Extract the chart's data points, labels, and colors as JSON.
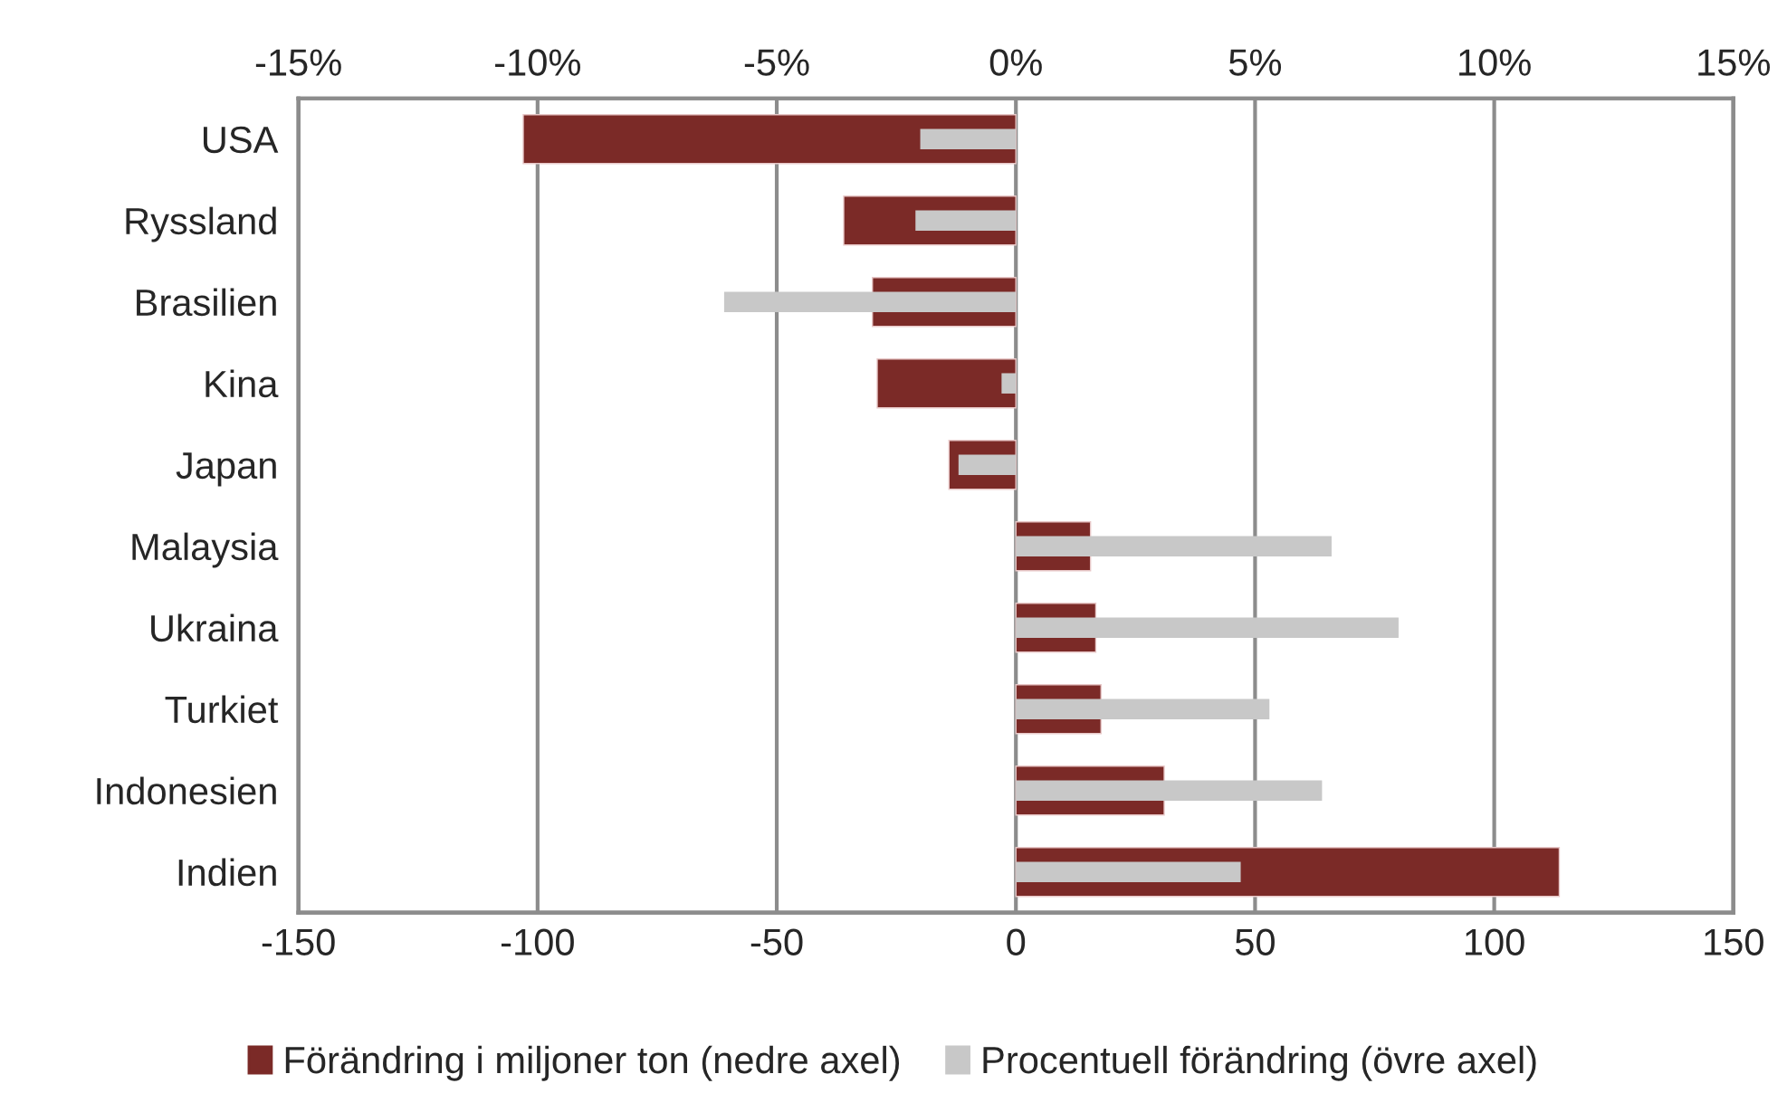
{
  "chart_data": {
    "type": "bar",
    "orientation": "horizontal",
    "categories": [
      "USA",
      "Ryssland",
      "Brasilien",
      "Kina",
      "Japan",
      "Malaysia",
      "Ukraina",
      "Turkiet",
      "Indonesien",
      "Indien"
    ],
    "series": [
      {
        "name": "Förändring i miljoner ton (nedre axel)",
        "color": "#7b2a27",
        "values": [
          -103,
          -36,
          -30,
          -29,
          -14,
          15.6,
          16.7,
          17.8,
          31,
          113.6
        ]
      },
      {
        "name": "Procentuell förändring (övre axel)",
        "color": "#c8c8c8",
        "axis": "x2",
        "values": [
          -2.0,
          -2.1,
          -6.1,
          -0.3,
          -1.2,
          6.6,
          8.0,
          5.3,
          6.4,
          4.7
        ]
      }
    ],
    "xlim": [
      -150,
      150
    ],
    "xticks": [
      -150,
      -100,
      -50,
      0,
      50,
      100,
      150
    ],
    "x2lim": [
      -15,
      15
    ],
    "x2ticks": [
      {
        "value": -15,
        "label": "-15%"
      },
      {
        "value": -10,
        "label": "-10%"
      },
      {
        "value": -5,
        "label": "-5%"
      },
      {
        "value": 0,
        "label": "0%"
      },
      {
        "value": 5,
        "label": "5%"
      },
      {
        "value": 10,
        "label": "10%"
      },
      {
        "value": 15,
        "label": "15%"
      }
    ],
    "grid": "x",
    "legend": "bottom"
  }
}
